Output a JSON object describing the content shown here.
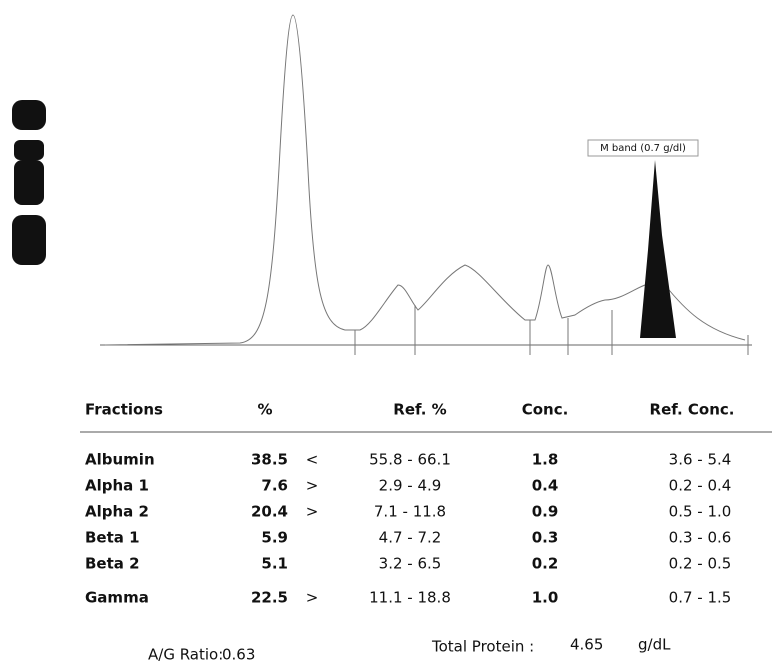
{
  "trace": {
    "annotation": "M band (0.7 g/dl)"
  },
  "table": {
    "headers": {
      "fraction": "Fractions",
      "percent": "%",
      "ref_percent": "Ref. %",
      "conc": "Conc.",
      "ref_conc": "Ref. Conc."
    },
    "rows": [
      {
        "fraction": "Albumin",
        "percent": "38.5",
        "flag": "<",
        "ref_percent": "55.8 - 66.1",
        "conc": "1.8",
        "ref_conc": "3.6 - 5.4"
      },
      {
        "fraction": "Alpha 1",
        "percent": "7.6",
        "flag": ">",
        "ref_percent": "2.9 - 4.9",
        "conc": "0.4",
        "ref_conc": "0.2 - 0.4"
      },
      {
        "fraction": "Alpha 2",
        "percent": "20.4",
        "flag": ">",
        "ref_percent": "7.1 - 11.8",
        "conc": "0.9",
        "ref_conc": "0.5 - 1.0"
      },
      {
        "fraction": "Beta 1",
        "percent": "5.9",
        "ref_percent": "4.7 - 7.2",
        "conc": "0.3",
        "ref_conc": "0.3 - 0.6"
      },
      {
        "fraction": "Beta 2",
        "percent": "5.1",
        "ref_percent": "3.2 - 6.5",
        "conc": "0.2",
        "ref_conc": "0.2 - 0.5"
      },
      {
        "fraction": "Gamma",
        "percent": "22.5",
        "flag": ">",
        "ref_percent": "11.1 - 18.8",
        "conc": "1.0",
        "ref_conc": "0.7 - 1.5"
      }
    ]
  },
  "footer": {
    "ag_label": "A/G Ratio:",
    "ag_value": "0.63",
    "tp_label": "Total Protein :",
    "tp_value": "4.65",
    "tp_unit": "g/dL"
  }
}
